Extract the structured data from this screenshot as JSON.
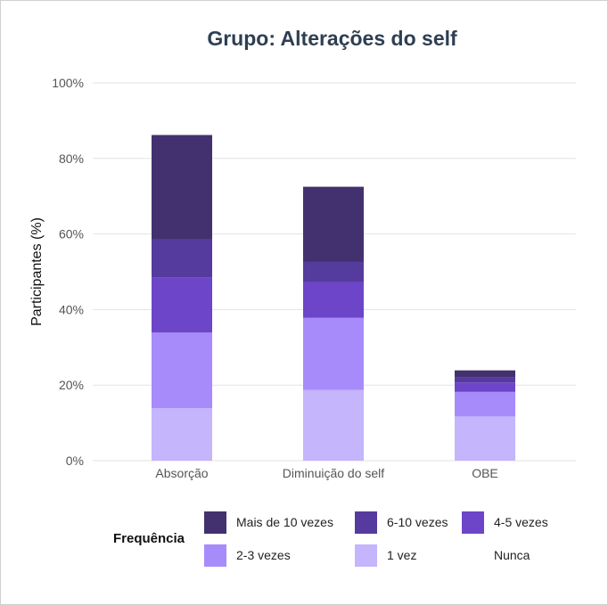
{
  "chart_data": {
    "type": "bar",
    "stacked": true,
    "title": "Grupo: Alterações do self",
    "xlabel": "",
    "ylabel": "Participantes (%)",
    "ylim": [
      0,
      100
    ],
    "yticks": [
      "0%",
      "20%",
      "40%",
      "60%",
      "80%",
      "100%"
    ],
    "grid": true,
    "categories": [
      "Absorção",
      "Diminuição do self",
      "OBE"
    ],
    "legend_title": "Frequência",
    "legend_position": "bottom",
    "series": [
      {
        "name": "1 vez",
        "color": "#c4b5fd",
        "values": [
          13.9,
          18.7,
          11.7
        ]
      },
      {
        "name": "2-3 vezes",
        "color": "#a78bfa",
        "values": [
          20.0,
          19.1,
          6.5
        ]
      },
      {
        "name": "4-5 vezes",
        "color": "#6d45c9",
        "values": [
          14.6,
          9.5,
          2.5
        ]
      },
      {
        "name": "6-10 vezes",
        "color": "#563b9e",
        "values": [
          10.1,
          5.3,
          1.3
        ]
      },
      {
        "name": "Mais de 10 vezes",
        "color": "#43316f",
        "values": [
          27.6,
          19.9,
          1.9
        ]
      },
      {
        "name": "Nunca",
        "color": "",
        "values": [
          0,
          0,
          0
        ]
      }
    ],
    "legend_order": [
      "Mais de 10 vezes",
      "6-10 vezes",
      "4-5 vezes",
      "2-3 vezes",
      "1 vez",
      "Nunca"
    ]
  }
}
